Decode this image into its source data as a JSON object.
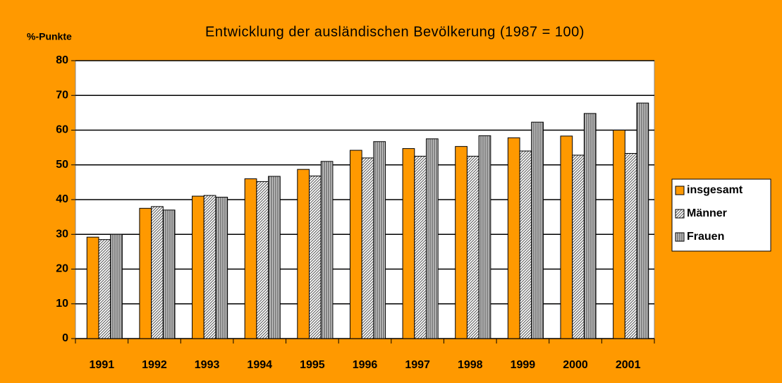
{
  "chart_data": {
    "type": "bar",
    "title": "Entwicklung der ausländischen Bevölkerung  (1987 = 100)",
    "y_label": "%-Punkte",
    "categories": [
      "1991",
      "1992",
      "1993",
      "1994",
      "1995",
      "1996",
      "1997",
      "1998",
      "1999",
      "2000",
      "2001"
    ],
    "series": [
      {
        "name": "insgesamt",
        "color": "#ff9900",
        "values": [
          29.2,
          37.5,
          41,
          46,
          48.7,
          54.2,
          54.7,
          55.3,
          57.8,
          58.3,
          60
        ]
      },
      {
        "name": "Männer",
        "color": "#ffffff",
        "pattern": "diagonal",
        "values": [
          28.5,
          38,
          41.2,
          45.2,
          46.8,
          52,
          52.5,
          52.5,
          54,
          52.8,
          53.3
        ]
      },
      {
        "name": "Frauen",
        "color": "#a0a0a0",
        "pattern": "vertical",
        "values": [
          30,
          37,
          40.7,
          46.7,
          51,
          56.7,
          57.5,
          58.4,
          62.3,
          64.8,
          67.8
        ]
      }
    ],
    "ylim": [
      0,
      80
    ],
    "yticks": [
      0,
      10,
      20,
      30,
      40,
      50,
      60,
      70,
      80
    ],
    "grid": true,
    "legend": "right"
  }
}
